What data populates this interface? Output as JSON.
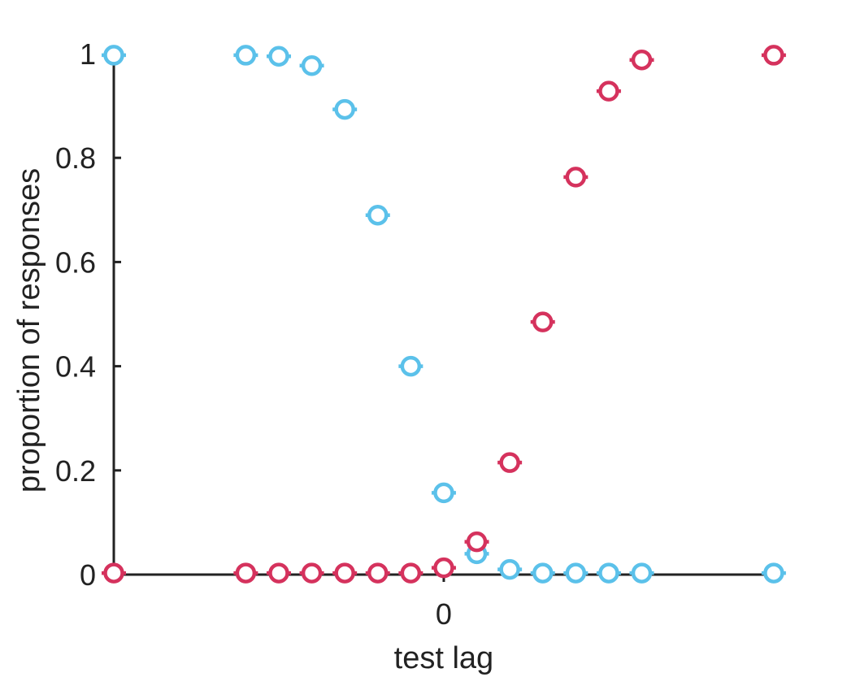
{
  "chart_data": {
    "type": "scatter",
    "xlabel": "test lag",
    "ylabel": "proportion of responses",
    "xlim": [
      -10,
      10.2
    ],
    "ylim": [
      0,
      1
    ],
    "x_ticks": [
      0
    ],
    "y_ticks": [
      {
        "value": 0,
        "label": "0"
      },
      {
        "value": 0.2,
        "label": "0.2"
      },
      {
        "value": 0.4,
        "label": "0.4"
      },
      {
        "value": 0.6,
        "label": "0.6"
      },
      {
        "value": 0.8,
        "label": "0.8"
      },
      {
        "value": 1,
        "label": "1"
      }
    ],
    "grid": false,
    "marker": "open-circle",
    "series": [
      {
        "color": "#5bc1ea",
        "points": [
          {
            "x": -10,
            "y": 0.997
          },
          {
            "x": -6,
            "y": 0.997
          },
          {
            "x": -5,
            "y": 0.995
          },
          {
            "x": -4,
            "y": 0.977
          },
          {
            "x": -3,
            "y": 0.893
          },
          {
            "x": -2,
            "y": 0.69
          },
          {
            "x": -1,
            "y": 0.4
          },
          {
            "x": 0,
            "y": 0.157
          },
          {
            "x": 1,
            "y": 0.04
          },
          {
            "x": 2,
            "y": 0.01
          },
          {
            "x": 3,
            "y": 0.003
          },
          {
            "x": 4,
            "y": 0.003
          },
          {
            "x": 5,
            "y": 0.003
          },
          {
            "x": 6,
            "y": 0.003
          },
          {
            "x": 10,
            "y": 0.003
          }
        ]
      },
      {
        "color": "#d5325d",
        "points": [
          {
            "x": -10,
            "y": 0.003
          },
          {
            "x": -6,
            "y": 0.003
          },
          {
            "x": -5,
            "y": 0.003
          },
          {
            "x": -4,
            "y": 0.003
          },
          {
            "x": -3,
            "y": 0.003
          },
          {
            "x": -2,
            "y": 0.003
          },
          {
            "x": -1,
            "y": 0.003
          },
          {
            "x": 0,
            "y": 0.013
          },
          {
            "x": 1,
            "y": 0.063
          },
          {
            "x": 2,
            "y": 0.215
          },
          {
            "x": 3,
            "y": 0.485
          },
          {
            "x": 4,
            "y": 0.763
          },
          {
            "x": 5,
            "y": 0.928
          },
          {
            "x": 6,
            "y": 0.988
          },
          {
            "x": 10,
            "y": 0.997
          }
        ]
      }
    ]
  }
}
